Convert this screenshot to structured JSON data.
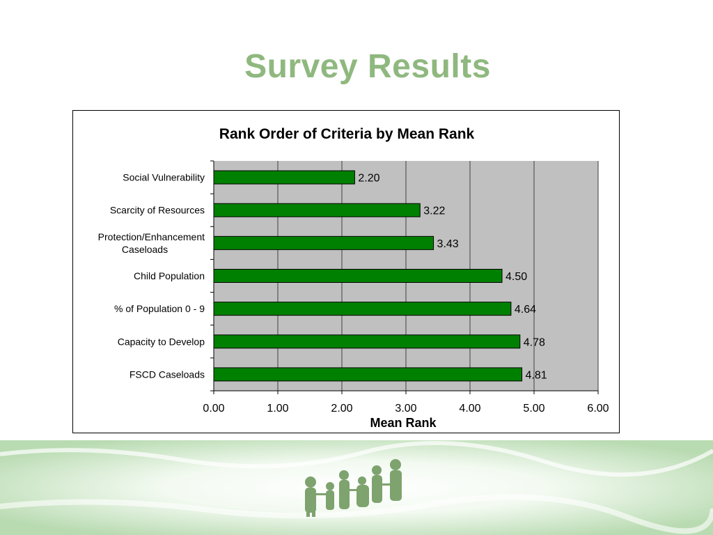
{
  "slide": {
    "title": "Survey Results"
  },
  "colors": {
    "title": "#8fb87f",
    "bar": "#008000",
    "plot_bg": "#c0c0c0",
    "footer": "#b7d9b0",
    "figures": "#7ea36e"
  },
  "chart_data": {
    "type": "bar",
    "orientation": "horizontal",
    "title": "Rank Order of Criteria by Mean Rank",
    "xlabel": "Mean Rank",
    "ylabel": "",
    "xlim": [
      0,
      6
    ],
    "xticks": [
      "0.00",
      "1.00",
      "2.00",
      "3.00",
      "4.00",
      "5.00",
      "6.00"
    ],
    "grid": "vertical",
    "legend": "none",
    "categories": [
      [
        "Social Vulnerability"
      ],
      [
        "Scarcity of Resources"
      ],
      [
        "Protection/Enhancement",
        "Caseloads"
      ],
      [
        "Child Population"
      ],
      [
        "% of Population 0 - 9"
      ],
      [
        "Capacity to Develop"
      ],
      [
        "FSCD Caseloads"
      ]
    ],
    "values": [
      2.2,
      3.22,
      3.43,
      4.5,
      4.64,
      4.78,
      4.81
    ],
    "value_labels": [
      "2.20",
      "3.22",
      "3.43",
      "4.50",
      "4.64",
      "4.78",
      "4.81"
    ]
  }
}
